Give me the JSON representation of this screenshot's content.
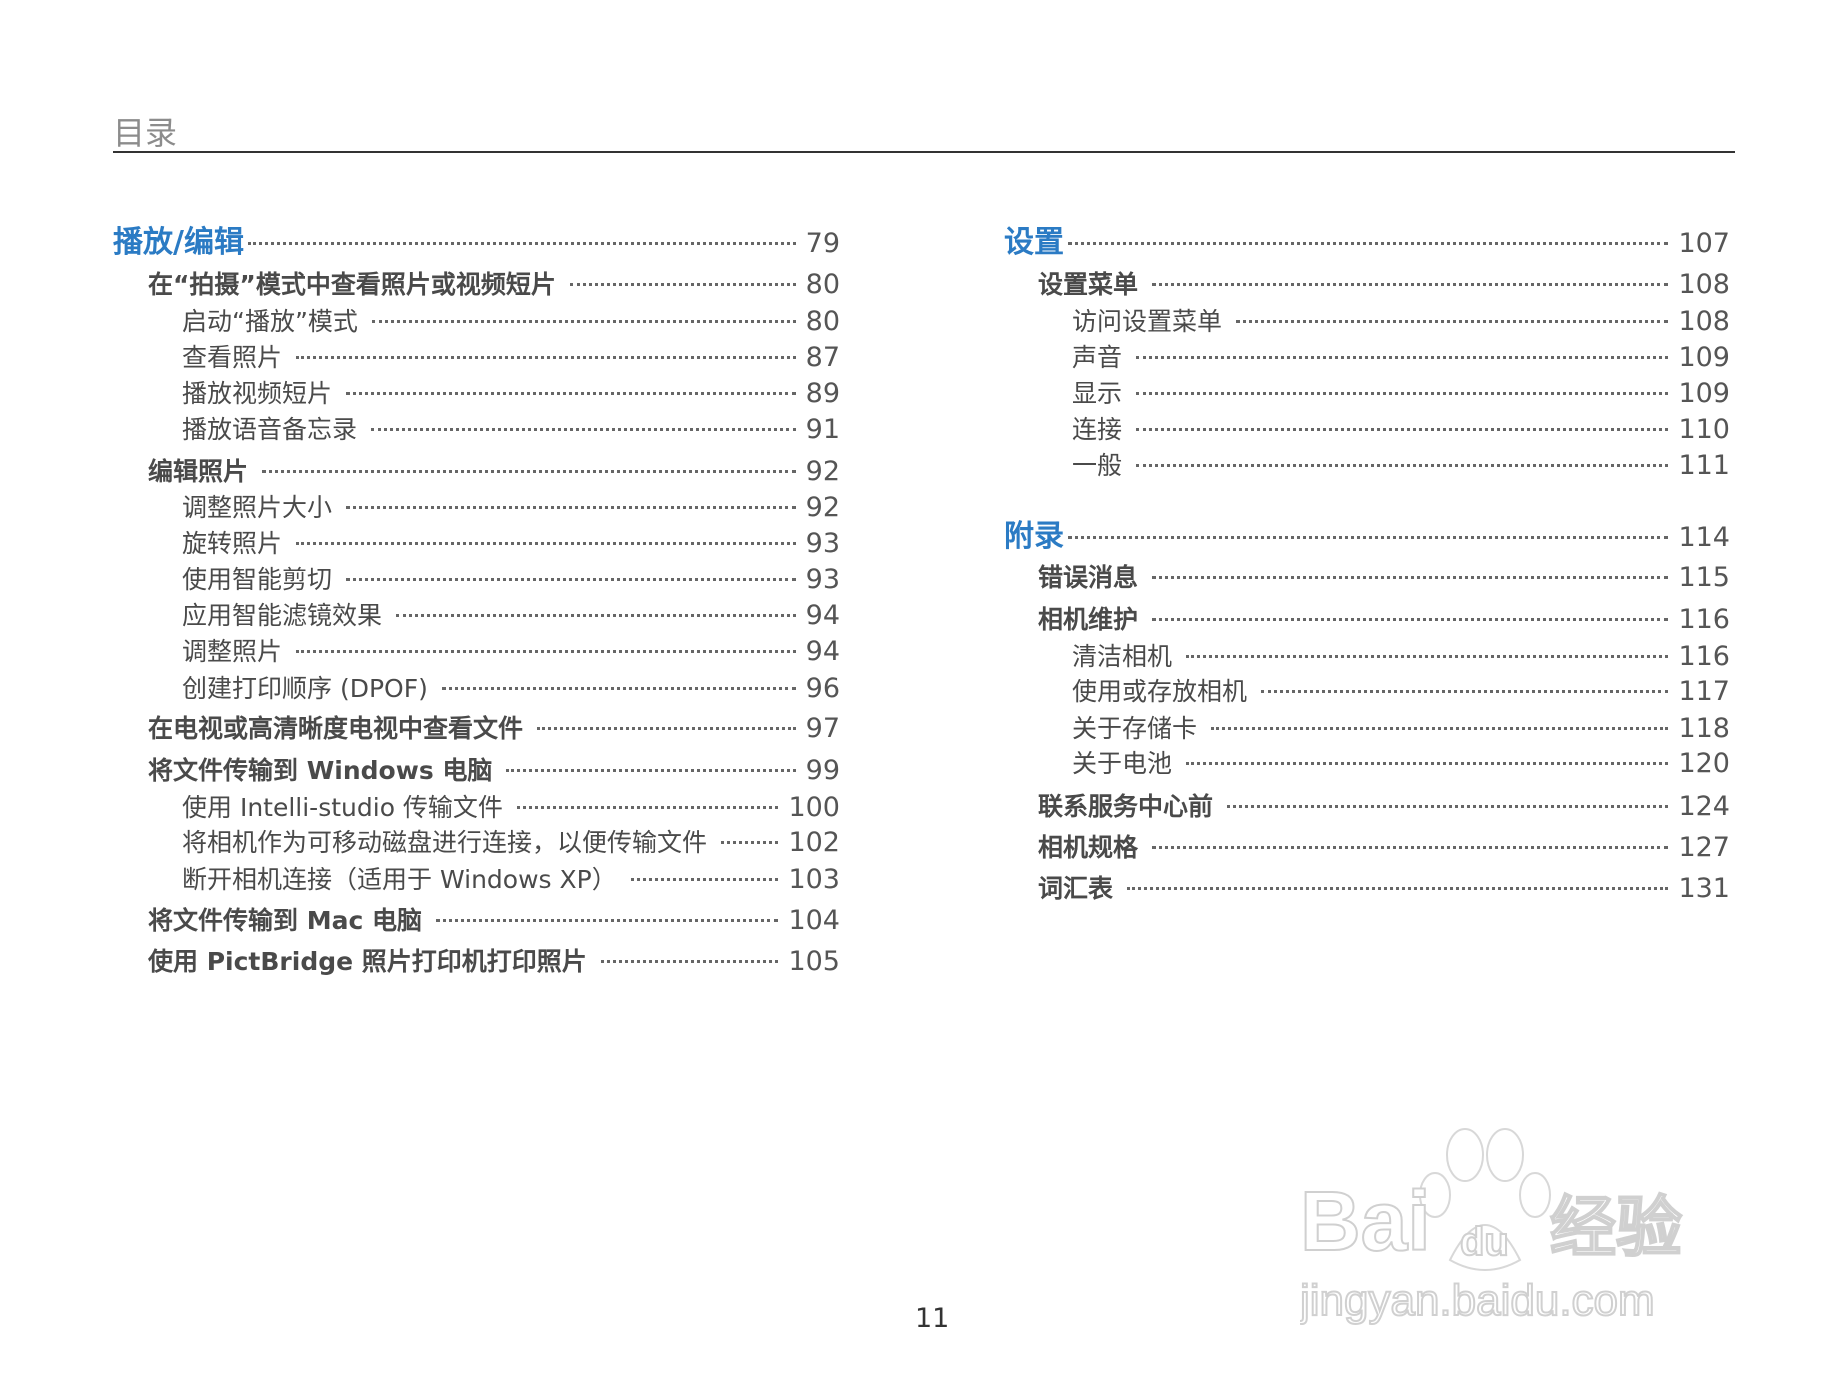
{
  "title": "目录",
  "page_number": "11",
  "colors": {
    "heading": "#2b7bc4",
    "text": "#4a4a4a"
  },
  "watermark": {
    "brand": "Bai du 经验",
    "url": "jingyan.baidu.com"
  },
  "left_column": [
    {
      "level": 1,
      "label": "播放/编辑",
      "page": "79"
    },
    {
      "level": 2,
      "label": "在“拍摄”模式中查看照片或视频短片",
      "page": "80"
    },
    {
      "level": 3,
      "label": "启动“播放”模式",
      "page": "80"
    },
    {
      "level": 3,
      "label": "查看照片",
      "page": "87"
    },
    {
      "level": 3,
      "label": "播放视频短片",
      "page": "89"
    },
    {
      "level": 3,
      "label": "播放语音备忘录",
      "page": "91"
    },
    {
      "level": 2,
      "label": "编辑照片",
      "page": "92"
    },
    {
      "level": 3,
      "label": "调整照片大小",
      "page": "92"
    },
    {
      "level": 3,
      "label": "旋转照片",
      "page": "93"
    },
    {
      "level": 3,
      "label": "使用智能剪切",
      "page": "93"
    },
    {
      "level": 3,
      "label": "应用智能滤镜效果",
      "page": "94"
    },
    {
      "level": 3,
      "label": "调整照片",
      "page": "94"
    },
    {
      "level": 3,
      "label": "创建打印顺序 (DPOF)",
      "page": "96"
    },
    {
      "level": 2,
      "label": "在电视或高清晰度电视中查看文件",
      "page": "97"
    },
    {
      "level": 2,
      "label": "将文件传输到 Windows 电脑",
      "page": "99"
    },
    {
      "level": 3,
      "label": "使用 Intelli-studio 传输文件",
      "page": "100"
    },
    {
      "level": 3,
      "label": "将相机作为可移动磁盘进行连接，以便传输文件",
      "page": "102"
    },
    {
      "level": 3,
      "label": "断开相机连接（适用于 Windows XP）",
      "page": "103"
    },
    {
      "level": 2,
      "label": "将文件传输到 Mac 电脑",
      "page": "104"
    },
    {
      "level": 2,
      "label": "使用 PictBridge 照片打印机打印照片",
      "page": "105"
    }
  ],
  "right_column": [
    {
      "level": 1,
      "label": "设置",
      "page": "107"
    },
    {
      "level": 2,
      "label": "设置菜单",
      "page": "108"
    },
    {
      "level": 3,
      "label": "访问设置菜单",
      "page": "108"
    },
    {
      "level": 3,
      "label": "声音",
      "page": "109"
    },
    {
      "level": 3,
      "label": "显示",
      "page": "109"
    },
    {
      "level": 3,
      "label": "连接",
      "page": "110"
    },
    {
      "level": 3,
      "label": "一般",
      "page": "111"
    },
    {
      "level": 1,
      "label": "附录",
      "page": "114"
    },
    {
      "level": 2,
      "label": "错误消息",
      "page": "115"
    },
    {
      "level": 2,
      "label": "相机维护",
      "page": "116"
    },
    {
      "level": 3,
      "label": "清洁相机",
      "page": "116"
    },
    {
      "level": 3,
      "label": "使用或存放相机",
      "page": "117"
    },
    {
      "level": 3,
      "label": "关于存储卡",
      "page": "118"
    },
    {
      "level": 3,
      "label": "关于电池",
      "page": "120"
    },
    {
      "level": 2,
      "label": "联系服务中心前",
      "page": "124"
    },
    {
      "level": 2,
      "label": "相机规格",
      "page": "127"
    },
    {
      "level": 2,
      "label": "词汇表",
      "page": "131"
    }
  ]
}
